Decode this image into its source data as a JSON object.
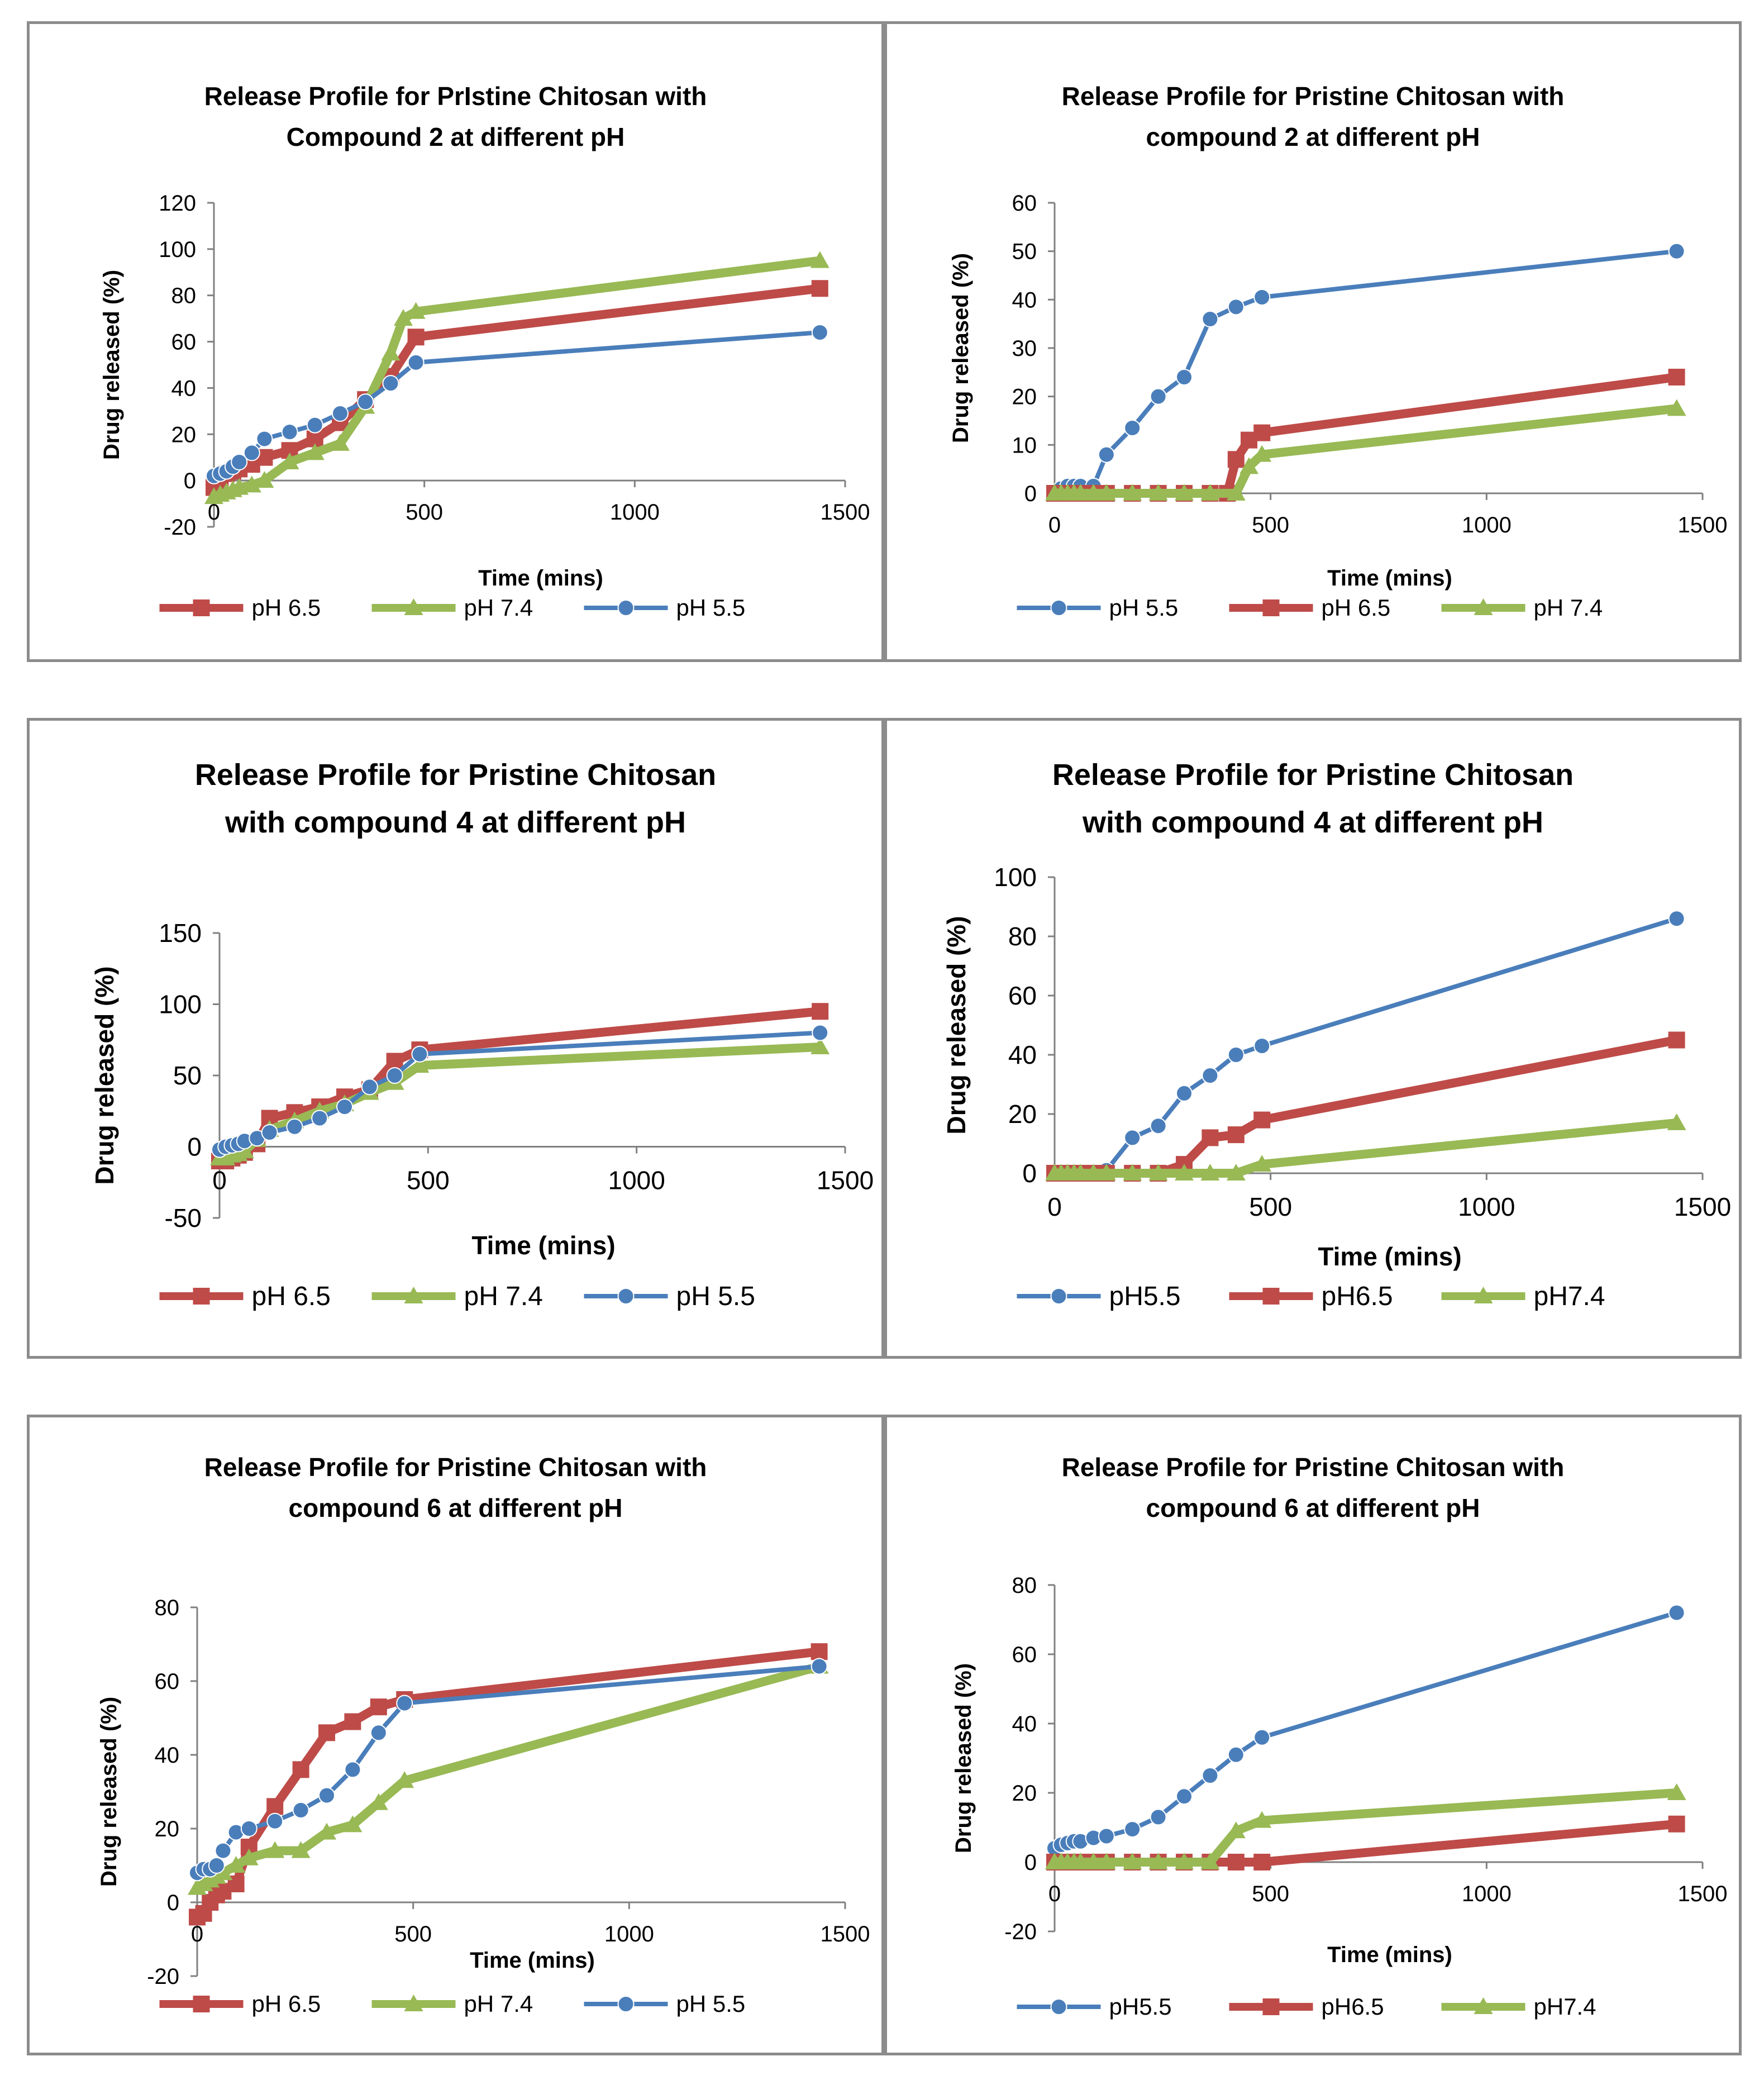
{
  "colors": {
    "pH 5.5": "#4a7ebb",
    "pH 6.5": "#be4b48",
    "pH 7.4": "#98b954"
  },
  "chart_data": [
    {
      "type": "line",
      "title": [
        "Release Profile for PrIstine Chitosan with",
        "Compound 2 at different pH"
      ],
      "xlabel": "Time (mins)",
      "ylabel": "Drug released (%)",
      "xlim": [
        0,
        1500
      ],
      "ylim": [
        -20,
        120
      ],
      "xticks": [
        0,
        500,
        1000,
        1500
      ],
      "yticks": [
        -20,
        0,
        20,
        40,
        60,
        80,
        100,
        120
      ],
      "series": [
        {
          "name": "pH 6.5",
          "key": "pH 6.5",
          "marker": "square",
          "width": "thick",
          "x": [
            0,
            15,
            30,
            45,
            60,
            90,
            120,
            180,
            240,
            300,
            360,
            420,
            480,
            1440
          ],
          "y": [
            -3,
            0,
            3,
            4,
            5,
            7,
            10,
            13,
            18,
            25,
            35,
            45,
            62,
            83
          ]
        },
        {
          "name": "pH 7.4",
          "key": "pH 7.4",
          "marker": "triangle",
          "width": "thick",
          "x": [
            0,
            15,
            30,
            45,
            60,
            90,
            120,
            180,
            240,
            300,
            360,
            420,
            450,
            480,
            1440
          ],
          "y": [
            -7,
            -6,
            -5,
            -4,
            -3,
            -2,
            0,
            8,
            12,
            16,
            32,
            55,
            70,
            73,
            95
          ]
        },
        {
          "name": "pH 5.5",
          "key": "pH 5.5",
          "marker": "circle",
          "width": "normal",
          "x": [
            0,
            15,
            30,
            45,
            60,
            90,
            120,
            180,
            240,
            300,
            360,
            420,
            480,
            1440
          ],
          "y": [
            2,
            3,
            4,
            6,
            8,
            12,
            18,
            21,
            24,
            29,
            34,
            42,
            51,
            64
          ]
        }
      ],
      "legend": [
        "pH 6.5",
        "pH 7.4",
        "pH 5.5"
      ]
    },
    {
      "type": "line",
      "title": [
        "Release Profile for Pristine Chitosan with",
        "compound 2 at different pH"
      ],
      "xlabel": "Time (mins)",
      "ylabel": "Drug released (%)",
      "xlim": [
        0,
        1500
      ],
      "ylim": [
        0,
        60
      ],
      "xticks": [
        0,
        500,
        1000,
        1500
      ],
      "yticks": [
        0,
        10,
        20,
        30,
        40,
        50,
        60
      ],
      "series": [
        {
          "name": "pH 5.5",
          "key": "pH 5.5",
          "marker": "circle",
          "width": "normal",
          "x": [
            0,
            15,
            30,
            45,
            60,
            90,
            120,
            180,
            240,
            300,
            360,
            420,
            480,
            1440
          ],
          "y": [
            0,
            1,
            1.5,
            1.5,
            1.5,
            1.5,
            8,
            13.5,
            20,
            24,
            36,
            38.5,
            40.5,
            50
          ]
        },
        {
          "name": "pH 6.5",
          "key": "pH 6.5",
          "marker": "square",
          "width": "thick",
          "x": [
            0,
            15,
            30,
            45,
            60,
            90,
            120,
            180,
            240,
            300,
            360,
            400,
            420,
            450,
            480,
            1440
          ],
          "y": [
            0,
            0,
            0,
            0,
            0,
            0,
            0,
            0,
            0,
            0,
            0,
            0,
            7,
            11,
            12.5,
            24
          ]
        },
        {
          "name": "pH 7.4",
          "key": "pH 7.4",
          "marker": "triangle",
          "width": "thick",
          "x": [
            0,
            15,
            30,
            45,
            60,
            90,
            120,
            180,
            240,
            300,
            360,
            420,
            450,
            480,
            1440
          ],
          "y": [
            0,
            0,
            0,
            0,
            0,
            0,
            0,
            0,
            0,
            0,
            0,
            0,
            5.5,
            8,
            17.5
          ]
        }
      ],
      "legend": [
        "pH 5.5",
        "pH 6.5",
        "pH 7.4"
      ]
    },
    {
      "type": "line",
      "title": [
        "Release Profile for Pristine Chitosan",
        "with compound 4 at different pH"
      ],
      "xlabel": "Time (mins)",
      "ylabel": "Drug released (%)",
      "xlim": [
        0,
        1500
      ],
      "ylim": [
        -50,
        150
      ],
      "xticks": [
        0,
        500,
        1000,
        1500
      ],
      "yticks": [
        -50,
        0,
        50,
        100,
        150
      ],
      "series": [
        {
          "name": "pH 6.5",
          "key": "pH 6.5",
          "marker": "square",
          "width": "thick",
          "x": [
            0,
            15,
            30,
            45,
            60,
            90,
            120,
            180,
            240,
            300,
            360,
            420,
            480,
            1440
          ],
          "y": [
            -10,
            -10,
            -8,
            -6,
            -4,
            2,
            20,
            24,
            28,
            35,
            40,
            60,
            68,
            95
          ]
        },
        {
          "name": "pH 7.4",
          "key": "pH 7.4",
          "marker": "triangle",
          "width": "thick",
          "x": [
            0,
            15,
            30,
            45,
            60,
            90,
            120,
            180,
            240,
            300,
            360,
            420,
            480,
            1440
          ],
          "y": [
            -8,
            -8,
            -6,
            -5,
            -3,
            5,
            12,
            18,
            25,
            30,
            38,
            45,
            57,
            70
          ]
        },
        {
          "name": "pH 5.5",
          "key": "pH 5.5",
          "marker": "circle",
          "width": "normal",
          "x": [
            0,
            15,
            30,
            45,
            60,
            90,
            120,
            180,
            240,
            300,
            360,
            420,
            480,
            1440
          ],
          "y": [
            -2,
            0,
            1,
            2,
            4,
            6,
            10,
            14,
            20,
            28,
            42,
            50,
            65,
            80
          ]
        }
      ],
      "legend": [
        "pH 6.5",
        "pH 7.4",
        "pH 5.5"
      ]
    },
    {
      "type": "line",
      "title": [
        "Release Profile for Pristine Chitosan",
        "with compound 4 at different pH"
      ],
      "xlabel": "Time (mins)",
      "ylabel": "Drug released (%)",
      "xlim": [
        0,
        1500
      ],
      "ylim": [
        0,
        100
      ],
      "xticks": [
        0,
        500,
        1000,
        1500
      ],
      "yticks": [
        0,
        20,
        40,
        60,
        80,
        100
      ],
      "series": [
        {
          "name": "pH5.5",
          "key": "pH 5.5",
          "marker": "circle",
          "width": "normal",
          "x": [
            0,
            15,
            30,
            45,
            60,
            90,
            120,
            180,
            240,
            300,
            360,
            420,
            480,
            1440
          ],
          "y": [
            0,
            0,
            0,
            0,
            0,
            0,
            1,
            12,
            16,
            27,
            33,
            40,
            43,
            86
          ]
        },
        {
          "name": "pH6.5",
          "key": "pH 6.5",
          "marker": "square",
          "width": "thick",
          "x": [
            0,
            15,
            30,
            45,
            60,
            90,
            120,
            180,
            240,
            300,
            360,
            420,
            480,
            1440
          ],
          "y": [
            0,
            0,
            0,
            0,
            0,
            0,
            0,
            0,
            0,
            3,
            12,
            13,
            18,
            45
          ]
        },
        {
          "name": "pH7.4",
          "key": "pH 7.4",
          "marker": "triangle",
          "width": "thick",
          "x": [
            0,
            15,
            30,
            45,
            60,
            90,
            120,
            180,
            240,
            300,
            360,
            420,
            480,
            1440
          ],
          "y": [
            0,
            0,
            0,
            0,
            0,
            0,
            0,
            0,
            0,
            0,
            0,
            0,
            3,
            17
          ]
        }
      ],
      "legend": [
        "pH5.5",
        "pH6.5",
        "pH7.4"
      ]
    },
    {
      "type": "line",
      "title": [
        "Release Profile for Pristine Chitosan with",
        "compound 6 at different pH"
      ],
      "xlabel": "Time (mins)",
      "ylabel": "Drug released (%)",
      "xlim": [
        0,
        1500
      ],
      "ylim": [
        -20,
        80
      ],
      "xticks": [
        0,
        500,
        1000,
        1500
      ],
      "yticks": [
        -20,
        0,
        20,
        40,
        60,
        80
      ],
      "series": [
        {
          "name": "pH 6.5",
          "key": "pH 6.5",
          "marker": "square",
          "width": "thick",
          "x": [
            0,
            15,
            30,
            45,
            60,
            90,
            120,
            180,
            240,
            300,
            360,
            420,
            480,
            1440
          ],
          "y": [
            -4,
            -3,
            0,
            2,
            3,
            5,
            15,
            26,
            36,
            46,
            49,
            53,
            55,
            68
          ]
        },
        {
          "name": "pH 7.4",
          "key": "pH 7.4",
          "marker": "triangle",
          "width": "thick",
          "x": [
            0,
            15,
            30,
            45,
            60,
            90,
            120,
            180,
            240,
            300,
            360,
            420,
            480,
            1440
          ],
          "y": [
            4,
            5,
            6,
            7,
            8,
            10,
            12,
            14,
            14,
            19,
            21,
            27,
            33,
            64
          ]
        },
        {
          "name": "pH 5.5",
          "key": "pH 5.5",
          "marker": "circle",
          "width": "normal",
          "x": [
            0,
            15,
            30,
            45,
            60,
            90,
            120,
            180,
            240,
            300,
            360,
            420,
            480,
            1440
          ],
          "y": [
            8,
            9,
            9,
            10,
            14,
            19,
            20,
            22,
            25,
            29,
            36,
            46,
            54,
            64
          ]
        }
      ],
      "legend": [
        "pH 6.5",
        "pH 7.4",
        "pH 5.5"
      ]
    },
    {
      "type": "line",
      "title": [
        "Release Profile for Pristine Chitosan with",
        "compound 6 at different pH"
      ],
      "xlabel": "Time (mins)",
      "ylabel": "Drug released (%)",
      "xlim": [
        0,
        1500
      ],
      "ylim": [
        -20,
        80
      ],
      "xticks": [
        0,
        500,
        1000,
        1500
      ],
      "yticks": [
        -20,
        0,
        20,
        40,
        60,
        80
      ],
      "series": [
        {
          "name": "pH5.5",
          "key": "pH 5.5",
          "marker": "circle",
          "width": "normal",
          "x": [
            0,
            15,
            30,
            45,
            60,
            90,
            120,
            180,
            240,
            300,
            360,
            420,
            480,
            1440
          ],
          "y": [
            4,
            5,
            5.5,
            6,
            6,
            7,
            7.5,
            9.5,
            13,
            19,
            25,
            31,
            36,
            72
          ]
        },
        {
          "name": "pH6.5",
          "key": "pH 6.5",
          "marker": "square",
          "width": "thick",
          "x": [
            0,
            15,
            30,
            45,
            60,
            90,
            120,
            180,
            240,
            300,
            360,
            420,
            480,
            1440
          ],
          "y": [
            0,
            0,
            0,
            0,
            0,
            0,
            0,
            0,
            0,
            0,
            0,
            0,
            0,
            11
          ]
        },
        {
          "name": "pH7.4",
          "key": "pH 7.4",
          "marker": "triangle",
          "width": "thick",
          "x": [
            0,
            15,
            30,
            45,
            60,
            90,
            120,
            180,
            240,
            300,
            360,
            420,
            480,
            1440
          ],
          "y": [
            0,
            0,
            0,
            0,
            0,
            0,
            0,
            0,
            0,
            0,
            0,
            9,
            12,
            20
          ]
        }
      ],
      "legend": [
        "pH5.5",
        "pH6.5",
        "pH7.4"
      ]
    }
  ]
}
